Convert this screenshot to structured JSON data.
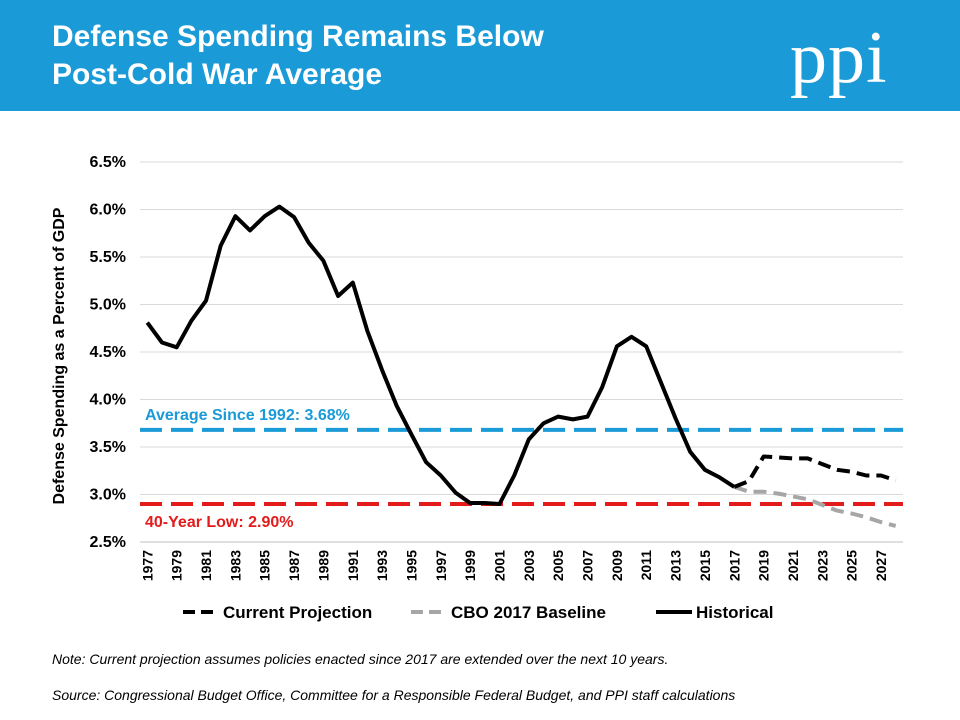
{
  "header": {
    "title_line1": "Defense Spending Remains Below",
    "title_line2": "Post-Cold War Average",
    "logo_text": "ppi",
    "background_color": "#1a9ad6"
  },
  "chart_data": {
    "type": "line",
    "title": "Defense Spending Remains Below Post-Cold War Average",
    "ylabel": "Defense Spending as a Percent of GDP",
    "xlabel": "",
    "ylim": [
      2.5,
      6.5
    ],
    "y_ticks": [
      "2.5%",
      "3.0%",
      "3.5%",
      "4.0%",
      "4.5%",
      "5.0%",
      "5.5%",
      "6.0%",
      "6.5%"
    ],
    "y_tick_values": [
      2.5,
      3.0,
      3.5,
      4.0,
      4.5,
      5.0,
      5.5,
      6.0,
      6.5
    ],
    "x_ticks": [
      "1977",
      "1979",
      "1981",
      "1983",
      "1985",
      "1987",
      "1989",
      "1991",
      "1993",
      "1995",
      "1997",
      "1999",
      "2001",
      "2003",
      "2005",
      "2007",
      "2009",
      "2011",
      "2013",
      "2015",
      "2017",
      "2019",
      "2021",
      "2023",
      "2025",
      "2027"
    ],
    "grid": "horizontal",
    "legend_position": "bottom",
    "series": [
      {
        "name": "Historical",
        "color": "#000000",
        "style": "solid",
        "x": [
          1977,
          1978,
          1979,
          1980,
          1981,
          1982,
          1983,
          1984,
          1985,
          1986,
          1987,
          1988,
          1989,
          1990,
          1991,
          1992,
          1993,
          1994,
          1995,
          1996,
          1997,
          1998,
          1999,
          2000,
          2001,
          2002,
          2003,
          2004,
          2005,
          2006,
          2007,
          2008,
          2009,
          2010,
          2011,
          2012,
          2013,
          2014,
          2015,
          2016,
          2017
        ],
        "values": [
          4.81,
          4.6,
          4.55,
          4.83,
          5.04,
          5.62,
          5.93,
          5.78,
          5.93,
          6.03,
          5.92,
          5.65,
          5.46,
          5.09,
          5.23,
          4.72,
          4.31,
          3.93,
          3.63,
          3.34,
          3.2,
          3.02,
          2.91,
          2.91,
          2.9,
          3.2,
          3.58,
          3.75,
          3.82,
          3.79,
          3.82,
          4.13,
          4.56,
          4.66,
          4.56,
          4.18,
          3.8,
          3.45,
          3.26,
          3.18,
          3.08
        ]
      },
      {
        "name": "Current Projection",
        "color": "#000000",
        "style": "dashed",
        "x": [
          2017,
          2018,
          2019,
          2020,
          2021,
          2022,
          2023,
          2024,
          2025,
          2026,
          2027,
          2028
        ],
        "values": [
          3.08,
          3.14,
          3.4,
          3.39,
          3.38,
          3.38,
          3.32,
          3.26,
          3.24,
          3.2,
          3.2,
          3.15
        ]
      },
      {
        "name": "CBO 2017 Baseline",
        "color": "#a6a6a6",
        "style": "dashed",
        "x": [
          2017,
          2018,
          2019,
          2020,
          2021,
          2022,
          2023,
          2024,
          2025,
          2026,
          2027,
          2028
        ],
        "values": [
          3.08,
          3.03,
          3.03,
          3.01,
          2.98,
          2.95,
          2.89,
          2.83,
          2.8,
          2.76,
          2.71,
          2.67
        ]
      }
    ],
    "reference_lines": [
      {
        "label": "Average Since 1992: 3.68%",
        "value": 3.68,
        "color": "#1a9ad6"
      },
      {
        "label": "40-Year Low: 2.90%",
        "value": 2.9,
        "color": "#e31b1b"
      }
    ]
  },
  "legend": {
    "items": [
      {
        "label": "Current Projection",
        "color": "#000000"
      },
      {
        "label": "CBO 2017 Baseline",
        "color": "#a6a6a6"
      },
      {
        "label": "Historical",
        "color": "#000000"
      }
    ]
  },
  "footer": {
    "note": "Note: Current projection assumes policies enacted since 2017 are extended over the next 10 years.",
    "source": "Source: Congressional Budget Office, Committee for a Responsible Federal Budget, and PPI staff calculations"
  }
}
